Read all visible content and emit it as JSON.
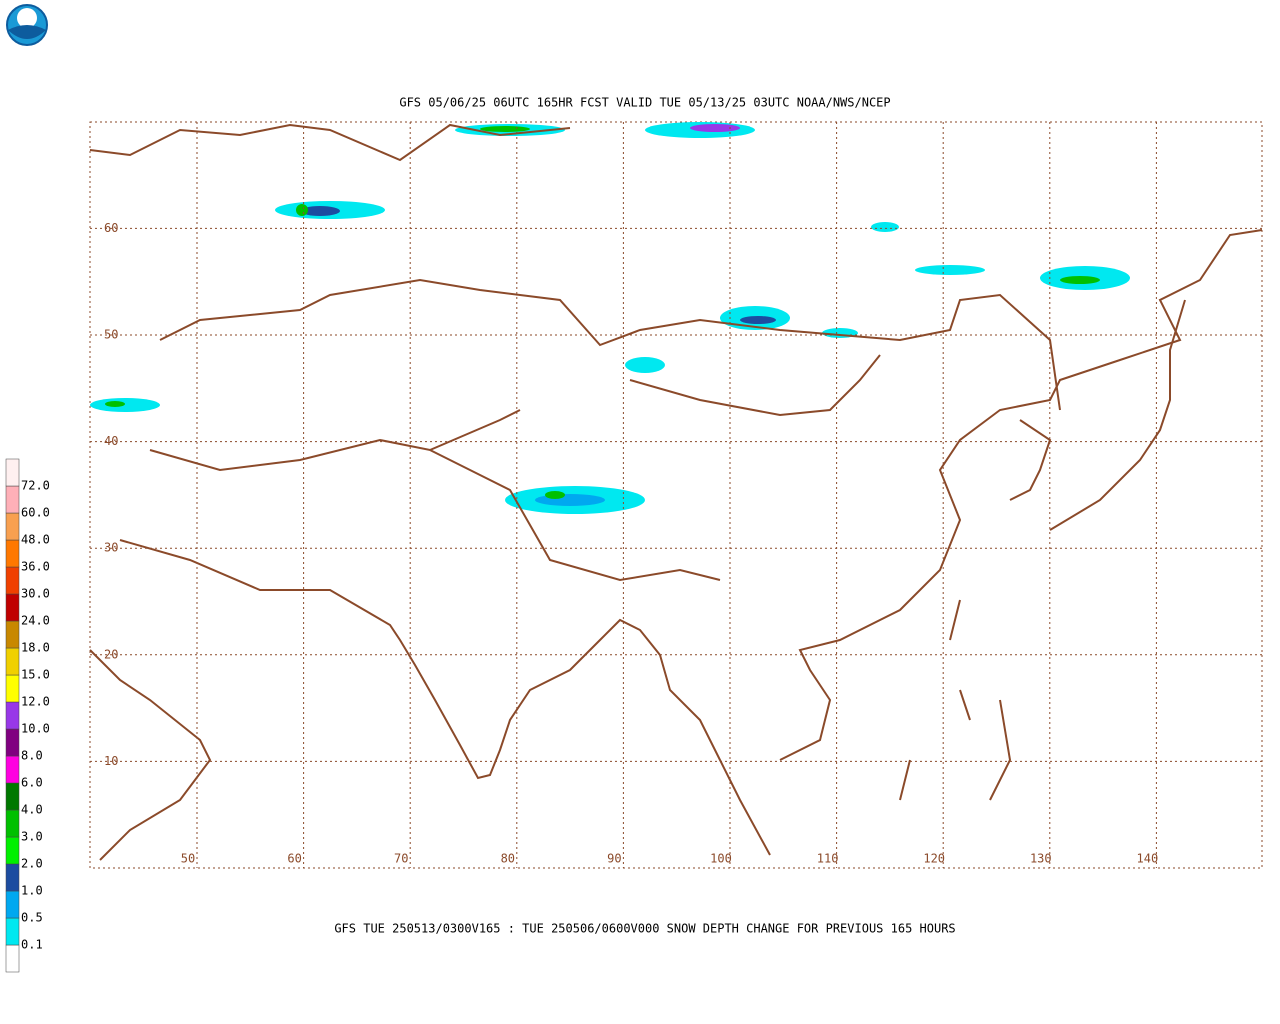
{
  "header": {
    "title": "GFS 05/06/25 06UTC 165HR FCST VALID TUE 05/13/25 03UTC NOAA/NWS/NCEP"
  },
  "footer": {
    "caption": "GFS TUE 250513/0300V165 : TUE 250506/0600V000 SNOW DEPTH CHANGE FOR PREVIOUS 165 HOURS"
  },
  "grid": {
    "lon_labels": [
      50,
      60,
      70,
      80,
      90,
      100,
      110,
      120,
      130,
      140
    ],
    "lat_labels": [
      60,
      50,
      40,
      30,
      20,
      10
    ]
  },
  "legend": {
    "labels": [
      "0.1",
      "0.5",
      "1.0",
      "2.0",
      "3.0",
      "4.0",
      "6.0",
      "8.0",
      "10.0",
      "12.0",
      "15.0",
      "18.0",
      "24.0",
      "30.0",
      "36.0",
      "48.0",
      "60.0",
      "72.0"
    ],
    "colors": [
      "#ffffff",
      "#00e8f0",
      "#00a8f0",
      "#1c4ca0",
      "#00f000",
      "#00c000",
      "#007800",
      "#ff00e0",
      "#800080",
      "#9838e8",
      "#ffff00",
      "#f0d000",
      "#c88800",
      "#c00000",
      "#f04000",
      "#ff7800",
      "#f8a050",
      "#ffb0b8",
      "#fff0f0"
    ]
  }
}
